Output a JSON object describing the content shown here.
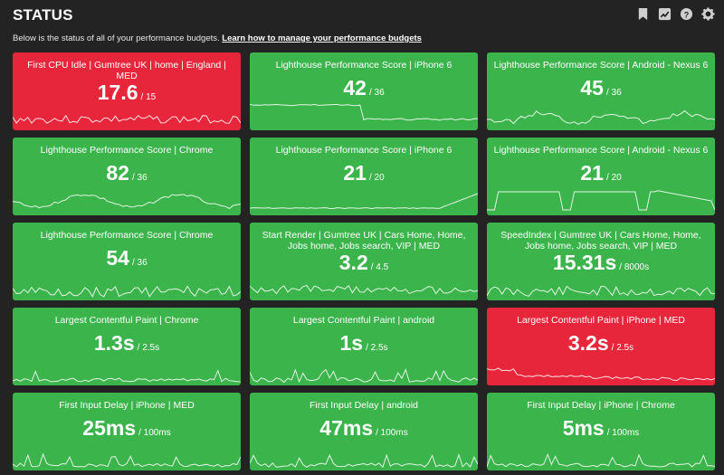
{
  "header": {
    "title": "STATUS",
    "subtitle_text": "Below is the status of all of your performance budgets.",
    "subtitle_link": "Learn how to manage your performance budgets",
    "icons": [
      "bookmark-icon",
      "chart-icon",
      "help-icon",
      "gear-icon"
    ]
  },
  "colors": {
    "pass": "#3bb44b",
    "fail": "#e8263b",
    "background": "#232323"
  },
  "cards": [
    {
      "label": "First CPU Idle | Gumtree UK | home | England | MED",
      "value": "17.6",
      "budget": "/ 15",
      "status": "fail",
      "spark": "noisy"
    },
    {
      "label": "Lighthouse Performance Score | iPhone 6",
      "value": "42",
      "budget": "/ 36",
      "status": "ok",
      "spark": "drop"
    },
    {
      "label": "Lighthouse Performance Score | Android - Nexus 6",
      "value": "45",
      "budget": "/ 36",
      "status": "ok",
      "spark": "wavy"
    },
    {
      "label": "Lighthouse Performance Score | Chrome",
      "value": "82",
      "budget": "/ 36",
      "status": "ok",
      "spark": "wavy2"
    },
    {
      "label": "Lighthouse Performance Score | iPhone 6",
      "value": "21",
      "budget": "/ 20",
      "status": "ok",
      "spark": "flatrise"
    },
    {
      "label": "Lighthouse Performance Score | Android - Nexus 6",
      "value": "21",
      "budget": "/ 20",
      "status": "ok",
      "spark": "steps"
    },
    {
      "label": "Lighthouse Performance Score | Chrome",
      "value": "54",
      "budget": "/ 36",
      "status": "ok",
      "spark": "noisy2"
    },
    {
      "label": "Start Render | Gumtree UK | Cars Home, Home, Jobs home, Jobs search, VIP | MED",
      "value": "3.2",
      "budget": "/ 4.5",
      "status": "ok",
      "spark": "noisy"
    },
    {
      "label": "SpeedIndex | Gumtree UK | Cars Home, Home, Jobs home, Jobs search, VIP | MED",
      "value": "15.31s",
      "budget": "/ 8000s",
      "status": "ok",
      "spark": "noisy2"
    },
    {
      "label": "Largest Contentful Paint | Chrome",
      "value": "1.3s",
      "budget": "/ 2.5s",
      "status": "ok",
      "spark": "spiky"
    },
    {
      "label": "Largest Contentful Paint | android",
      "value": "1s",
      "budget": "/ 2.5s",
      "status": "ok",
      "spark": "spiky2"
    },
    {
      "label": "Largest Contentful Paint | iPhone | MED",
      "value": "3.2s",
      "budget": "/ 2.5s",
      "status": "fail",
      "spark": "decline"
    },
    {
      "label": "First Input Delay | iPhone | MED",
      "value": "25ms",
      "budget": "/ 100ms",
      "status": "ok",
      "spark": "spiky"
    },
    {
      "label": "First Input Delay | android",
      "value": "47ms",
      "budget": "/ 100ms",
      "status": "ok",
      "spark": "spiky2"
    },
    {
      "label": "First Input Delay | iPhone | Chrome",
      "value": "5ms",
      "budget": "/ 100ms",
      "status": "ok",
      "spark": "spiky"
    }
  ]
}
